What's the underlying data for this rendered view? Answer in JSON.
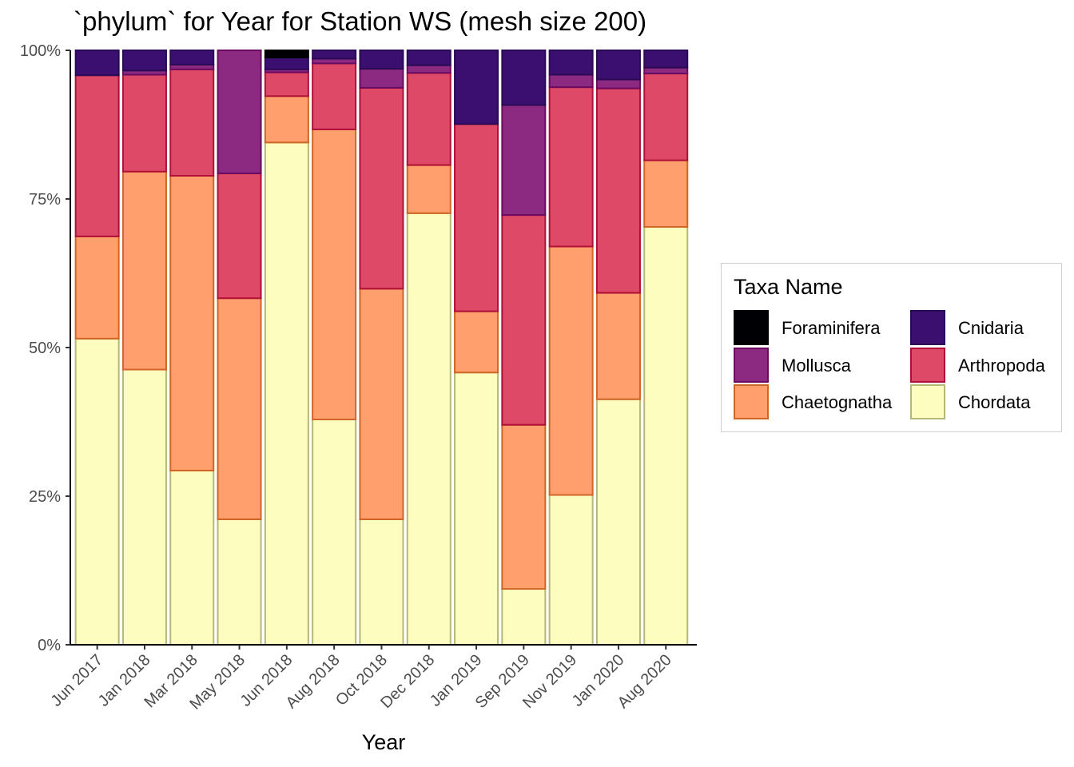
{
  "title": "`phylum` for Year for Station WS (mesh size 200)",
  "chart_data": {
    "type": "bar",
    "stacked": true,
    "percent": true,
    "title": "`phylum` for Year for Station WS (mesh size 200)",
    "xlabel": "Year",
    "ylabel": "",
    "ylim": [
      0,
      100
    ],
    "y_ticks": [
      "0%",
      "25%",
      "50%",
      "75%",
      "100%"
    ],
    "y_tick_values": [
      0,
      25,
      50,
      75,
      100
    ],
    "categories": [
      "Jun 2017",
      "Jan 2018",
      "Mar 2018",
      "May 2018",
      "Jun 2018",
      "Aug 2018",
      "Oct 2018",
      "Dec 2018",
      "Jan 2019",
      "Sep 2019",
      "Nov 2019",
      "Jan 2020",
      "Aug 2020"
    ],
    "legend_title": "Taxa Name",
    "legend_position": "right",
    "legend_order": [
      "Foraminifera",
      "Cnidaria",
      "Mollusca",
      "Arthropoda",
      "Chaetognatha",
      "Chordata"
    ],
    "series": [
      {
        "name": "Chordata",
        "fill": "#FCFDBF",
        "stroke": "#B6B87A",
        "values": [
          51.5,
          46.3,
          29.3,
          21.1,
          84.5,
          37.9,
          21.1,
          72.6,
          45.8,
          9.4,
          25.2,
          41.3,
          70.3
        ]
      },
      {
        "name": "Chaetognatha",
        "fill": "#FE9F6D",
        "stroke": "#D06625",
        "values": [
          17.2,
          33.3,
          49.6,
          37.2,
          7.8,
          48.8,
          38.8,
          8.1,
          10.3,
          27.6,
          41.8,
          17.9,
          11.2
        ]
      },
      {
        "name": "Arthropoda",
        "fill": "#DE4968",
        "stroke": "#B01038",
        "values": [
          27.1,
          16.3,
          17.9,
          21.0,
          4.0,
          11.1,
          33.8,
          15.5,
          31.5,
          35.3,
          26.8,
          34.4,
          14.6
        ]
      },
      {
        "name": "Mollusca",
        "fill": "#8C2981",
        "stroke": "#6A0A60",
        "values": [
          0.0,
          0.7,
          0.8,
          20.7,
          0.5,
          0.8,
          3.2,
          1.3,
          0.0,
          18.5,
          2.1,
          1.5,
          1.0
        ]
      },
      {
        "name": "Cnidaria",
        "fill": "#3B0F70",
        "stroke": "#2A0A55",
        "values": [
          4.2,
          3.4,
          2.4,
          0.0,
          2.0,
          1.4,
          3.1,
          2.5,
          12.4,
          9.2,
          4.1,
          4.9,
          2.9
        ]
      },
      {
        "name": "Foraminifera",
        "fill": "#000004",
        "stroke": "#000000",
        "values": [
          0.0,
          0.0,
          0.0,
          0.0,
          1.2,
          0.0,
          0.0,
          0.0,
          0.0,
          0.0,
          0.0,
          0.0,
          0.0
        ]
      }
    ]
  }
}
